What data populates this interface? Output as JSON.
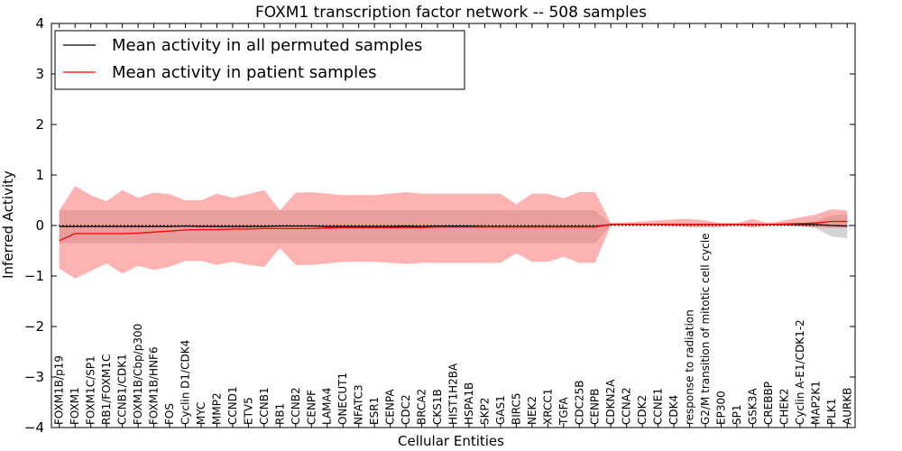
{
  "chart_data": {
    "type": "line",
    "title": "FOXM1 transcription factor network -- 508 samples",
    "xlabel": "Cellular Entities",
    "ylabel": "Inferred Activity",
    "ylim": [
      -4,
      4
    ],
    "yticks": [
      -4,
      -3,
      -2,
      -1,
      0,
      1,
      2,
      3,
      4
    ],
    "ytick_labels": [
      "−4",
      "−3",
      "−2",
      "−1",
      "0",
      "1",
      "2",
      "3",
      "4"
    ],
    "legend_position": "top-left",
    "categories": [
      "FOXM1B/p19",
      "FOXM1",
      "FOXM1C/SP1",
      "RB1/FOXM1C",
      "CCNB1/CDK1",
      "FOXM1B/Cbp/p300",
      "FOXM1B/HNF6",
      "FOS",
      "Cyclin D1/CDK4",
      "MYC",
      "MMP2",
      "CCND1",
      "ETV5",
      "CCNB1",
      "RB1",
      "CCNB2",
      "CENPF",
      "LAMA4",
      "ONECUT1",
      "NFATC3",
      "ESR1",
      "CENPA",
      "CDC2",
      "BRCA2",
      "CKS1B",
      "HIST1H2BA",
      "HSPA1B",
      "SKP2",
      "GAS1",
      "BIRC5",
      "NEK2",
      "XRCC1",
      "TGFA",
      "CDC25B",
      "CENPB",
      "CDKN2A",
      "CCNA2",
      "CDK2",
      "CCNE1",
      "CDK4",
      "response to radiation",
      "G2/M transition of mitotic cell cycle",
      "EP300",
      "SP1",
      "GSK3A",
      "CREBBP",
      "CHEK2",
      "Cyclin A-E1/CDK1-2",
      "MAP2K1",
      "PLK1",
      "AURKB"
    ],
    "series": [
      {
        "name": "Mean activity in all permuted samples",
        "color": "#000000",
        "band_color": "#555555",
        "values": [
          -0.02,
          -0.02,
          -0.02,
          -0.02,
          -0.02,
          -0.02,
          -0.02,
          -0.02,
          -0.01,
          -0.02,
          -0.02,
          -0.02,
          -0.02,
          -0.02,
          -0.01,
          -0.01,
          -0.01,
          -0.02,
          -0.02,
          -0.02,
          -0.02,
          -0.02,
          -0.01,
          -0.02,
          -0.01,
          -0.01,
          -0.01,
          -0.02,
          -0.02,
          -0.02,
          -0.02,
          -0.02,
          -0.02,
          -0.02,
          -0.02,
          0.02,
          0.02,
          0.02,
          0.02,
          0.02,
          0.02,
          0.02,
          0.02,
          0.02,
          0.02,
          0.02,
          0.02,
          0.02,
          0.02,
          0.0,
          -0.01
        ],
        "lower": [
          -0.35,
          -0.35,
          -0.35,
          -0.35,
          -0.35,
          -0.35,
          -0.35,
          -0.35,
          -0.35,
          -0.35,
          -0.35,
          -0.35,
          -0.35,
          -0.35,
          -0.35,
          -0.35,
          -0.35,
          -0.35,
          -0.35,
          -0.35,
          -0.35,
          -0.35,
          -0.35,
          -0.35,
          -0.35,
          -0.35,
          -0.35,
          -0.35,
          -0.35,
          -0.35,
          -0.35,
          -0.35,
          -0.35,
          -0.35,
          -0.35,
          0.0,
          0.0,
          0.0,
          0.0,
          0.0,
          0.0,
          0.0,
          0.0,
          0.0,
          0.0,
          0.0,
          0.0,
          0.0,
          -0.05,
          -0.22,
          -0.25
        ],
        "upper": [
          0.3,
          0.3,
          0.3,
          0.3,
          0.3,
          0.3,
          0.3,
          0.3,
          0.3,
          0.3,
          0.3,
          0.3,
          0.3,
          0.3,
          0.3,
          0.3,
          0.3,
          0.3,
          0.3,
          0.3,
          0.3,
          0.3,
          0.3,
          0.3,
          0.3,
          0.3,
          0.3,
          0.3,
          0.3,
          0.3,
          0.3,
          0.3,
          0.3,
          0.3,
          0.3,
          0.04,
          0.04,
          0.04,
          0.04,
          0.04,
          0.04,
          0.04,
          0.04,
          0.04,
          0.04,
          0.04,
          0.04,
          0.04,
          0.08,
          0.2,
          0.22
        ]
      },
      {
        "name": "Mean activity in patient samples",
        "color": "#ff0000",
        "band_color": "#ff6666",
        "values": [
          -0.3,
          -0.16,
          -0.16,
          -0.16,
          -0.16,
          -0.15,
          -0.13,
          -0.11,
          -0.09,
          -0.08,
          -0.08,
          -0.07,
          -0.07,
          -0.06,
          -0.06,
          -0.06,
          -0.06,
          -0.05,
          -0.04,
          -0.04,
          -0.04,
          -0.04,
          -0.04,
          -0.04,
          -0.03,
          -0.03,
          -0.03,
          -0.03,
          -0.03,
          -0.03,
          -0.03,
          -0.03,
          -0.03,
          -0.03,
          -0.03,
          0.02,
          0.02,
          0.02,
          0.02,
          0.02,
          0.02,
          0.02,
          0.02,
          0.02,
          0.02,
          0.02,
          0.03,
          0.04,
          0.05,
          0.08,
          0.08
        ],
        "lower": [
          -0.85,
          -1.05,
          -0.9,
          -0.75,
          -0.95,
          -0.8,
          -0.88,
          -0.82,
          -0.7,
          -0.7,
          -0.78,
          -0.72,
          -0.78,
          -0.82,
          -0.45,
          -0.78,
          -0.78,
          -0.75,
          -0.72,
          -0.72,
          -0.72,
          -0.74,
          -0.76,
          -0.74,
          -0.74,
          -0.74,
          -0.74,
          -0.74,
          -0.74,
          -0.55,
          -0.72,
          -0.72,
          -0.62,
          -0.74,
          -0.74,
          0.0,
          0.0,
          0.0,
          0.0,
          -0.02,
          -0.03,
          -0.04,
          -0.03,
          0.0,
          -0.04,
          0.0,
          0.0,
          -0.02,
          -0.04,
          -0.05,
          -0.05
        ],
        "upper": [
          0.3,
          0.78,
          0.6,
          0.48,
          0.7,
          0.55,
          0.65,
          0.62,
          0.5,
          0.5,
          0.63,
          0.55,
          0.62,
          0.7,
          0.3,
          0.65,
          0.66,
          0.63,
          0.6,
          0.6,
          0.6,
          0.63,
          0.66,
          0.63,
          0.63,
          0.63,
          0.63,
          0.63,
          0.63,
          0.42,
          0.63,
          0.63,
          0.54,
          0.66,
          0.66,
          0.05,
          0.06,
          0.08,
          0.1,
          0.12,
          0.13,
          0.1,
          0.05,
          0.05,
          0.13,
          0.05,
          0.1,
          0.16,
          0.22,
          0.32,
          0.3
        ]
      }
    ],
    "reference_line": {
      "y": 0,
      "style": "dotted"
    }
  }
}
